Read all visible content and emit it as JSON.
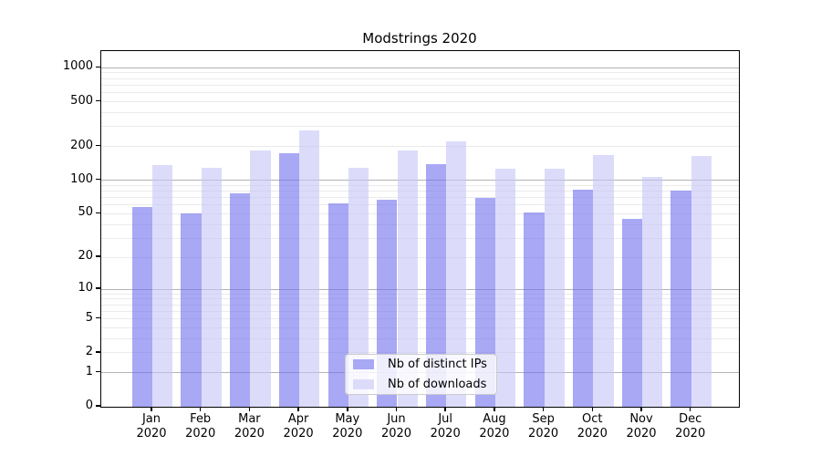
{
  "chart_data": {
    "type": "bar",
    "title": "Modstrings 2020",
    "categories": [
      "Jan 2020",
      "Feb 2020",
      "Mar 2020",
      "Apr 2020",
      "May 2020",
      "Jun 2020",
      "Jul 2020",
      "Aug 2020",
      "Sep 2020",
      "Oct 2020",
      "Nov 2020",
      "Dec 2020"
    ],
    "series": [
      {
        "name": "Nb of distinct IPs",
        "swatch": "#a8a8f5",
        "fill": "rgba(110,110,238,0.6)",
        "values": [
          58,
          50,
          76,
          174,
          62,
          67,
          139,
          70,
          51,
          82,
          45,
          81
        ]
      },
      {
        "name": "Nb of downloads",
        "swatch": "#dcdcfa",
        "fill": "rgba(197,197,247,0.6)",
        "values": [
          137,
          129,
          184,
          277,
          129,
          183,
          223,
          126,
          127,
          168,
          108,
          166
        ]
      }
    ],
    "xlabel": "",
    "ylabel": "",
    "yscale": "symlog-log1p",
    "ylim": [
      0,
      1000
    ],
    "y_ticks": [
      0,
      1,
      2,
      5,
      10,
      20,
      50,
      100,
      200,
      500,
      1000
    ],
    "grid": true,
    "legend_position": "lower center",
    "colors": {
      "major_grid": "#b3b3b3",
      "minor_grid": "#ebebeb",
      "axis": "#000000"
    }
  }
}
